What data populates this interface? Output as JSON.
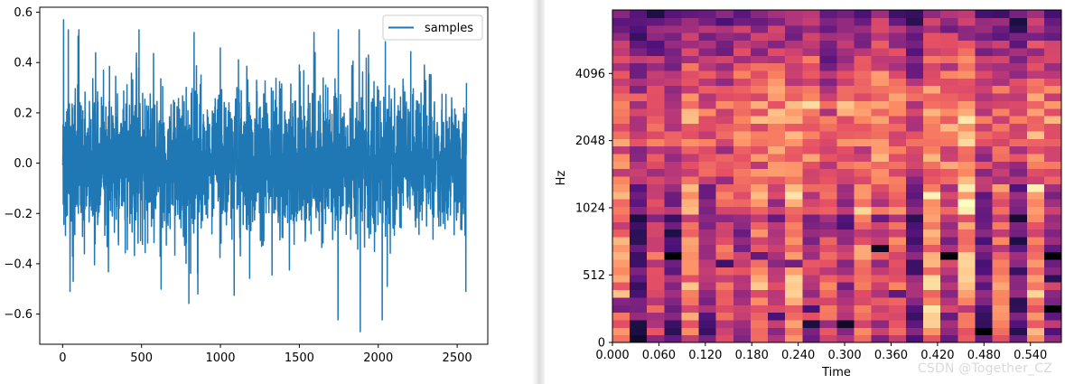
{
  "chart_data": [
    {
      "type": "line",
      "title": "",
      "xlabel": "",
      "ylabel": "",
      "xlim": [
        -145,
        2694
      ],
      "ylim": [
        -0.72,
        0.62
      ],
      "xticks": [
        0,
        500,
        1000,
        1500,
        2000,
        2500
      ],
      "yticks": [
        -0.6,
        -0.4,
        -0.2,
        0.0,
        0.2,
        0.4,
        0.6
      ],
      "xtick_labels": [
        "0",
        "500",
        "1000",
        "1500",
        "2000",
        "2500"
      ],
      "ytick_labels": [
        "−0.6",
        "−0.4",
        "−0.2",
        "0.0",
        "0.2",
        "0.4",
        "0.6"
      ],
      "legend": {
        "location": "upper right",
        "entries": [
          "samples"
        ]
      },
      "series": [
        {
          "name": "samples",
          "color": "#1f77b4",
          "n_points": 2560,
          "min": -0.67,
          "max": 0.57,
          "mean": 0.0
        }
      ]
    },
    {
      "type": "heatmap",
      "title": "",
      "xlabel": "Time",
      "ylabel": "Hz",
      "xlim": [
        0.0,
        0.58
      ],
      "y_scale": "log2",
      "xticks": [
        0.0,
        0.06,
        0.12,
        0.18,
        0.24,
        0.3,
        0.36,
        0.42,
        0.48,
        0.54
      ],
      "xtick_labels": [
        "0.000",
        "0.060",
        "0.120",
        "0.180",
        "0.240",
        "0.300",
        "0.360",
        "0.420",
        "0.480",
        "0.540"
      ],
      "yticks": [
        0,
        512,
        1024,
        2048,
        4096
      ],
      "ytick_labels": [
        "0",
        "512",
        "1024",
        "2048",
        "4096"
      ],
      "colormap": "magma"
    }
  ],
  "watermark": "CSDN @Together_CZ"
}
